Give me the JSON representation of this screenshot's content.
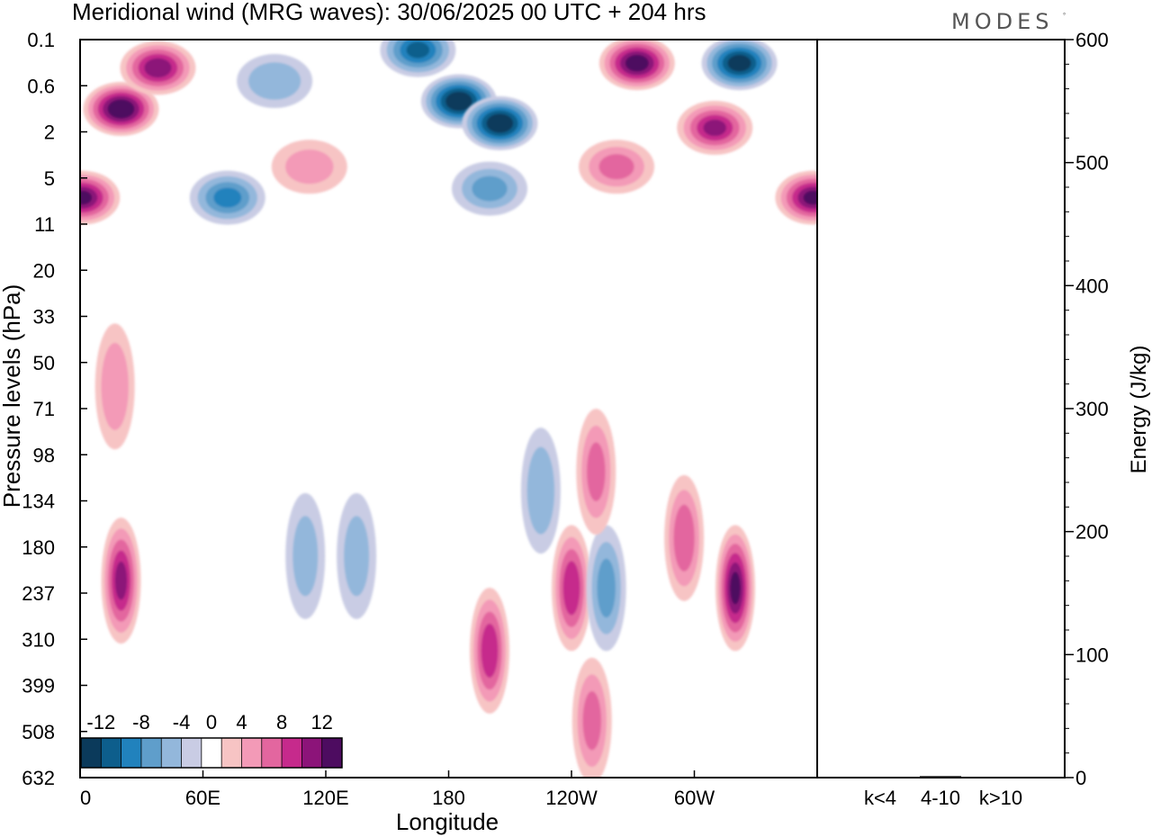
{
  "header": {
    "title": "Meridional wind (MRG waves):  30/06/2025  00 UTC  + 204 hrs",
    "logo": "MODES"
  },
  "chart_data": [
    {
      "type": "heatmap",
      "title": "Meridional wind (MRG waves):  30/06/2025  00 UTC  + 204 hrs",
      "xlabel": "Longitude",
      "ylabel": "Pressure levels (hPa)",
      "x_ticks": [
        "0",
        "60E",
        "120E",
        "180",
        "120W",
        "60W"
      ],
      "x_tick_degrees": [
        0,
        60,
        120,
        180,
        240,
        300
      ],
      "x_range_degrees": [
        0,
        360
      ],
      "y_ticks": [
        "0.1",
        "0.6",
        "2",
        "5",
        "11",
        "20",
        "33",
        "50",
        "71",
        "98",
        "134",
        "180",
        "237",
        "310",
        "399",
        "508",
        "632"
      ],
      "y_axis": "pressure levels, top to bottom",
      "colorbar": {
        "labels": [
          "-12",
          "-8",
          "-4",
          "0",
          "4",
          "8",
          "12"
        ],
        "label_levels": [
          -12,
          -8,
          -4,
          0,
          4,
          8,
          12
        ],
        "levels": [
          -14,
          -12,
          -10,
          -8,
          -6,
          -4,
          -2,
          2,
          4,
          6,
          8,
          10,
          12,
          14
        ],
        "colors": [
          "#0b3a5b",
          "#0d5e8c",
          "#2182bd",
          "#5f9ecb",
          "#93b7db",
          "#c9cce4",
          "#ffffff",
          "#f7c4c4",
          "#f39ab7",
          "#e3669f",
          "#c62a8c",
          "#8c1479",
          "#4d0c60"
        ]
      },
      "features": [
        {
          "sign": "positive",
          "lon": 20,
          "level": 1.1,
          "peak": 14
        },
        {
          "sign": "positive",
          "lon": 38,
          "level": 0.3,
          "peak": 11
        },
        {
          "sign": "positive",
          "lon": 1,
          "level": 7,
          "peak": 12
        },
        {
          "sign": "negative",
          "lon": 72,
          "level": 7,
          "peak": -8
        },
        {
          "sign": "negative",
          "lon": 95,
          "level": 0.5,
          "peak": -5
        },
        {
          "sign": "positive",
          "lon": 112,
          "level": 4,
          "peak": 4
        },
        {
          "sign": "negative",
          "lon": 165,
          "level": 0.15,
          "peak": -10
        },
        {
          "sign": "negative",
          "lon": 185,
          "level": 0.9,
          "peak": -14
        },
        {
          "sign": "negative",
          "lon": 205,
          "level": 1.6,
          "peak": -14
        },
        {
          "sign": "negative",
          "lon": 200,
          "level": 6,
          "peak": -6
        },
        {
          "sign": "positive",
          "lon": 272,
          "level": 0.25,
          "peak": 13
        },
        {
          "sign": "negative",
          "lon": 322,
          "level": 0.25,
          "peak": -13
        },
        {
          "sign": "positive",
          "lon": 310,
          "level": 1.8,
          "peak": 10
        },
        {
          "sign": "positive",
          "lon": 262,
          "level": 4,
          "peak": 6
        },
        {
          "sign": "positive",
          "lon": 358,
          "level": 7,
          "peak": 12
        },
        {
          "sign": "positive",
          "lon": 20,
          "level": 220,
          "peak": 10
        },
        {
          "sign": "positive",
          "lon": 200,
          "level": 330,
          "peak": 9
        },
        {
          "sign": "positive",
          "lon": 240,
          "level": 230,
          "peak": 9
        },
        {
          "sign": "negative",
          "lon": 257,
          "level": 230,
          "peak": -6
        },
        {
          "sign": "positive",
          "lon": 320,
          "level": 230,
          "peak": 12
        },
        {
          "sign": "positive",
          "lon": 295,
          "level": 170,
          "peak": 7
        },
        {
          "sign": "positive",
          "lon": 252,
          "level": 110,
          "peak": 6
        },
        {
          "sign": "negative",
          "lon": 225,
          "level": 125,
          "peak": -5
        },
        {
          "sign": "negative",
          "lon": 110,
          "level": 190,
          "peak": -4
        },
        {
          "sign": "negative",
          "lon": 135,
          "level": 190,
          "peak": -4
        },
        {
          "sign": "positive",
          "lon": 250,
          "level": 480,
          "peak": 6
        },
        {
          "sign": "positive",
          "lon": 17,
          "level": 60,
          "peak": 5
        }
      ]
    },
    {
      "type": "bar",
      "categories": [
        "k<4",
        "4-10",
        "k>10"
      ],
      "values": [
        0.4,
        1.2,
        0.3
      ],
      "ylabel": "Energy (J/kg)",
      "y_ticks": [
        "0",
        "100",
        "200",
        "300",
        "400",
        "500",
        "600"
      ],
      "ylim": [
        0,
        600
      ],
      "color": "#000000"
    }
  ]
}
